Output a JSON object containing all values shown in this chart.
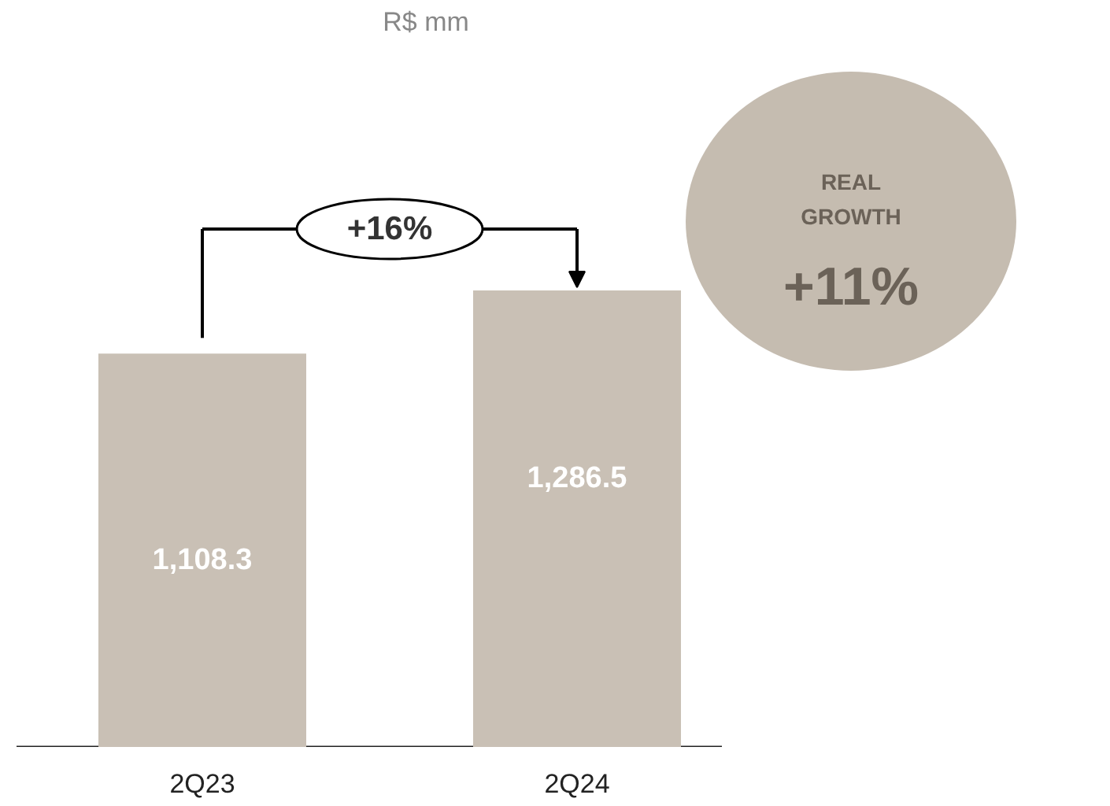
{
  "chart_data": {
    "type": "bar",
    "title": "R$ mm",
    "categories": [
      "2Q23",
      "2Q24"
    ],
    "values": [
      1108.3,
      1286.5
    ],
    "color": "#c9c0b5",
    "value_labels": [
      "1,108.3",
      "1,286.5"
    ],
    "annotations": [
      "+16%",
      "REAL GROWTH",
      "+11%"
    ]
  }
}
